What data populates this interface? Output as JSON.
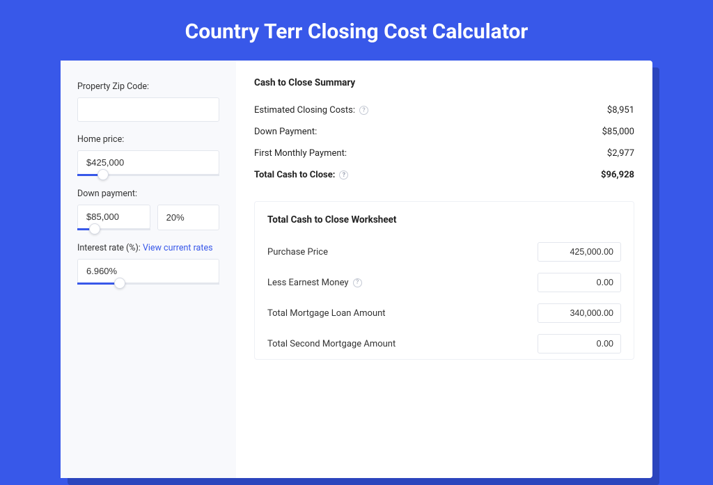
{
  "page": {
    "title": "Country Terr Closing Cost Calculator"
  },
  "colors": {
    "accent": "#3858e9",
    "page_bg": "#3858e9",
    "shadow": "#2b45bd",
    "panel_bg": "#f8f9fc",
    "border": "#e3e6ed"
  },
  "form": {
    "zip": {
      "label": "Property Zip Code:",
      "value": ""
    },
    "home_price": {
      "label": "Home price:",
      "value": "$425,000",
      "slider_pct": 18
    },
    "down_payment": {
      "label": "Down payment:",
      "value": "$85,000",
      "pct_value": "20%",
      "slider_pct": 24
    },
    "interest": {
      "label_prefix": "Interest rate (%): ",
      "link_text": "View current rates",
      "value": "6.960%",
      "slider_pct": 30
    }
  },
  "summary": {
    "title": "Cash to Close Summary",
    "rows": [
      {
        "label": "Estimated Closing Costs:",
        "help": true,
        "value": "$8,951",
        "bold": false
      },
      {
        "label": "Down Payment:",
        "help": false,
        "value": "$85,000",
        "bold": false
      },
      {
        "label": "First Monthly Payment:",
        "help": false,
        "value": "$2,977",
        "bold": false
      },
      {
        "label": "Total Cash to Close:",
        "help": true,
        "value": "$96,928",
        "bold": true
      }
    ]
  },
  "worksheet": {
    "title": "Total Cash to Close Worksheet",
    "rows": [
      {
        "label": "Purchase Price",
        "help": false,
        "value": "425,000.00"
      },
      {
        "label": "Less Earnest Money",
        "help": true,
        "value": "0.00"
      },
      {
        "label": "Total Mortgage Loan Amount",
        "help": false,
        "value": "340,000.00"
      },
      {
        "label": "Total Second Mortgage Amount",
        "help": false,
        "value": "0.00"
      }
    ]
  }
}
